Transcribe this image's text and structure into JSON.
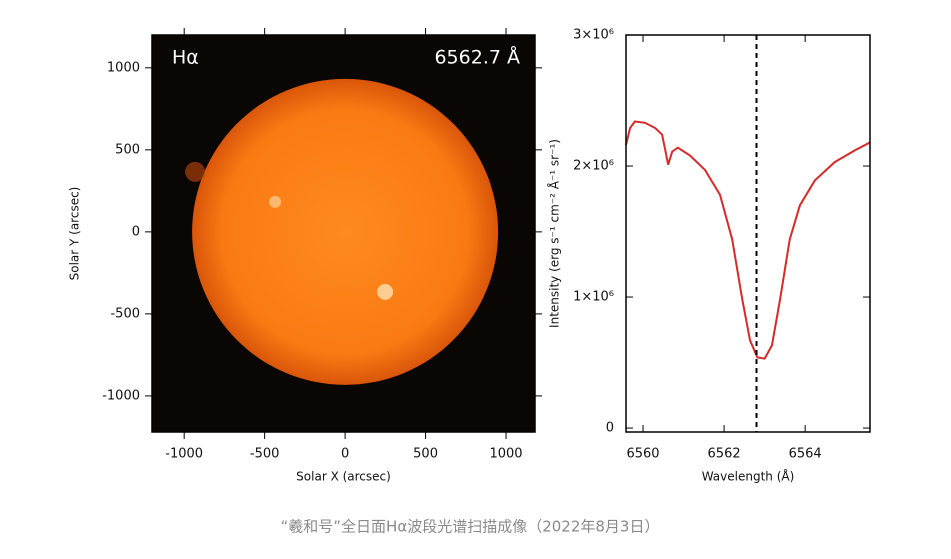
{
  "chart_data": [
    {
      "type": "image",
      "title": "Hα",
      "annotation": "6562.7 Å",
      "xlabel": "Solar X (arcsec)",
      "ylabel": "Solar Y (arcsec)",
      "xlim": [
        -1200,
        1180
      ],
      "ylim": [
        -1220,
        1200
      ],
      "xticks": [
        -1000,
        -500,
        0,
        500,
        1000
      ],
      "yticks": [
        -1000,
        -500,
        0,
        500,
        1000
      ]
    },
    {
      "type": "line",
      "xlabel": "Wavelength (Å)",
      "ylabel": "Intensity (erg s⁻¹ cm⁻² Å⁻¹ sr⁻¹)",
      "xlim": [
        6559.58,
        6565.6
      ],
      "ylim": [
        -30000,
        3000000
      ],
      "xticks": [
        6560,
        6562,
        6564
      ],
      "yticks": [
        0,
        {
          "value": 1000000,
          "label": "1×10⁶"
        },
        {
          "value": 2000000,
          "label": "2×10⁶"
        },
        {
          "value": 3000000,
          "label": "3×10⁶"
        }
      ],
      "reference_line": 6562.8,
      "series": [
        {
          "color": "#d42a2a",
          "x": [
            6559.58,
            6559.68,
            6559.8,
            6560.05,
            6560.3,
            6560.47,
            6560.55,
            6560.62,
            6560.72,
            6560.86,
            6561.16,
            6561.53,
            6561.9,
            6562.2,
            6562.45,
            6562.64,
            6562.82,
            6563.0,
            6563.18,
            6563.38,
            6563.62,
            6563.87,
            6564.24,
            6564.73,
            6565.23,
            6565.6
          ],
          "values": [
            2160000,
            2290000,
            2340000,
            2330000,
            2290000,
            2240000,
            2120000,
            2010000,
            2110000,
            2140000,
            2080000,
            1970000,
            1780000,
            1440000,
            980000,
            670000,
            540000,
            530000,
            630000,
            980000,
            1440000,
            1700000,
            1890000,
            2030000,
            2120000,
            2180000
          ]
        }
      ]
    }
  ],
  "caption": "“羲和号”全日面Hα波段光谱扫描成像（2022年8月3日）"
}
